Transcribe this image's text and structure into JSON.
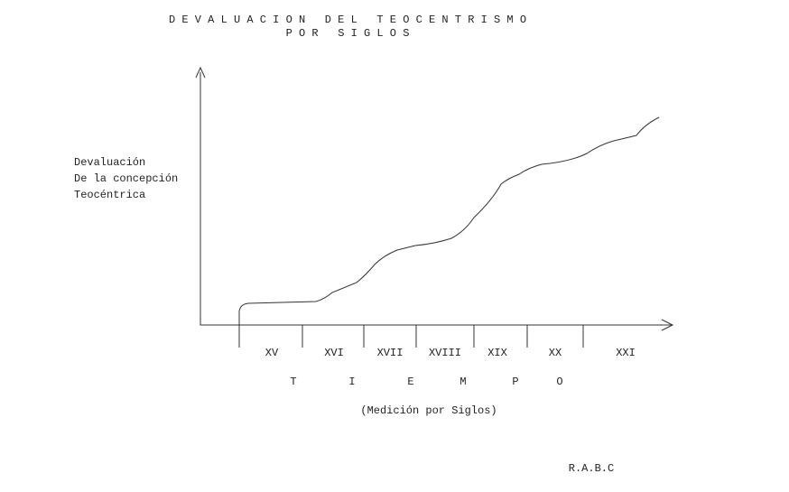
{
  "title": [
    "D E V A L U A C I O N   D E L   T E O C E N T R I S M O",
    "P O R   S I G L O S"
  ],
  "y_label": [
    "Devaluación",
    "De la concepción",
    "Teocéntrica"
  ],
  "centuries": [
    "XV",
    "XVI",
    "XVII",
    "XVIII",
    "XIX",
    "XX",
    "XXI"
  ],
  "x_label": [
    "T",
    "I",
    "E",
    "M",
    "P",
    "O"
  ],
  "x_note": "(Medición por Siglos)",
  "author": "R.A.B.C"
}
